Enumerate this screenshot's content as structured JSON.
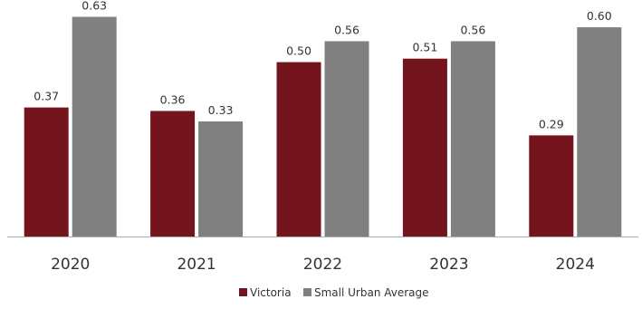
{
  "chart_data": {
    "type": "bar",
    "categories": [
      "2020",
      "2021",
      "2022",
      "2023",
      "2024"
    ],
    "series": [
      {
        "name": "Victoria",
        "values": [
          0.37,
          0.36,
          0.5,
          0.51,
          0.29
        ],
        "color": "#74141c"
      },
      {
        "name": "Small Urban Average",
        "values": [
          0.63,
          0.33,
          0.56,
          0.56,
          0.6
        ],
        "color": "#808080"
      }
    ],
    "data_labels": [
      [
        "0.37",
        "0.36",
        "0.50",
        "0.51",
        "0.29"
      ],
      [
        "0.63",
        "0.33",
        "0.56",
        "0.56",
        "0.60"
      ]
    ],
    "ylim": [
      0,
      0.66
    ],
    "grid": false,
    "legend_position": "bottom",
    "axis_color": "#aaaaaa"
  }
}
